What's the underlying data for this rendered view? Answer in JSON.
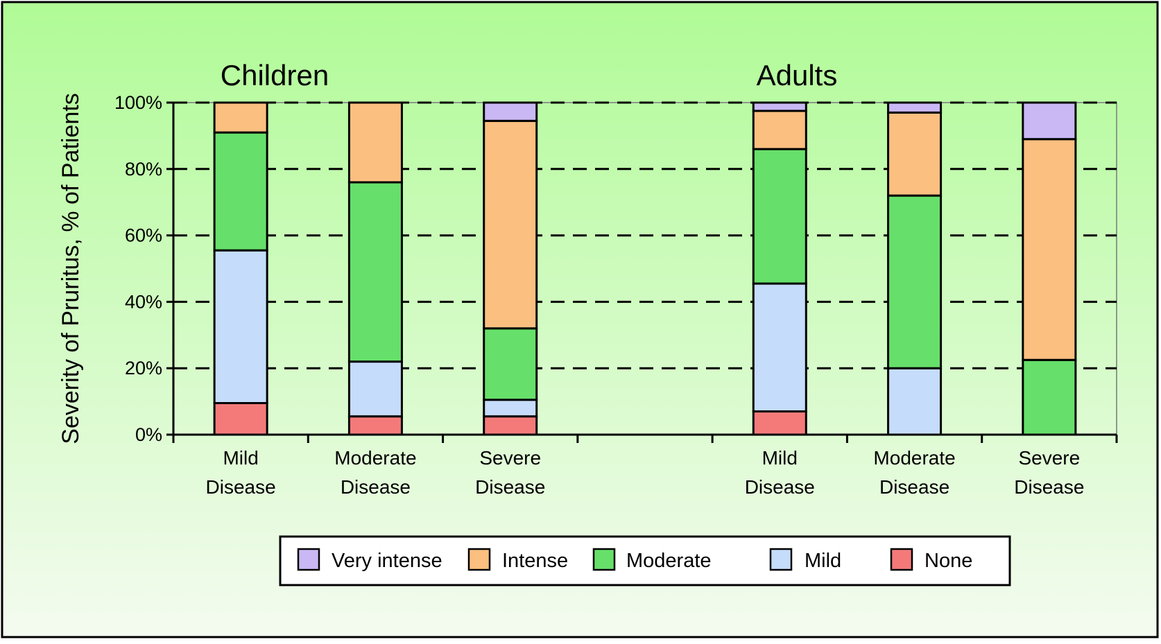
{
  "chart_data": {
    "type": "bar",
    "stacked": true,
    "ylabel": "Severity of Pruritus, % of Patients",
    "ylim": [
      0,
      100
    ],
    "yticks": [
      {
        "value": 0,
        "label": "0%"
      },
      {
        "value": 20,
        "label": "20%"
      },
      {
        "value": 40,
        "label": "40%"
      },
      {
        "value": 60,
        "label": "60%"
      },
      {
        "value": 80,
        "label": "80%"
      },
      {
        "value": 100,
        "label": "100%"
      }
    ],
    "gridlines": "dashed",
    "groups": [
      {
        "title": "Children",
        "categories": [
          {
            "line1": "Mild",
            "line2": "Disease"
          },
          {
            "line1": "Moderate",
            "line2": "Disease"
          },
          {
            "line1": "Severe",
            "line2": "Disease"
          }
        ]
      },
      {
        "title": "Adults",
        "categories": [
          {
            "line1": "Mild",
            "line2": "Disease"
          },
          {
            "line1": "Moderate",
            "line2": "Disease"
          },
          {
            "line1": "Severe",
            "line2": "Disease"
          }
        ]
      }
    ],
    "series": [
      {
        "name": "None",
        "color": "#f47a7a",
        "values": [
          9.5,
          5.5,
          5.5,
          7,
          0,
          0
        ]
      },
      {
        "name": "Mild",
        "color": "#c5dcfa",
        "values": [
          46,
          16.5,
          5,
          38.5,
          20,
          0
        ]
      },
      {
        "name": "Moderate",
        "color": "#66e06a",
        "values": [
          35.5,
          54,
          21.5,
          40.5,
          52,
          22.5
        ]
      },
      {
        "name": "Intense",
        "color": "#fbbf80",
        "values": [
          9,
          24,
          62.5,
          11.5,
          25,
          66.5
        ]
      },
      {
        "name": "Very intense",
        "color": "#c9b8f4",
        "values": [
          0,
          0,
          5.5,
          2.5,
          3,
          11
        ]
      }
    ],
    "legend": {
      "position": "bottom",
      "order": [
        "Very intense",
        "Intense",
        "Moderate",
        "Mild",
        "None"
      ]
    }
  },
  "colors": {
    "background_top": "#b0fb96",
    "background_bottom": "#f4fbf0",
    "plot_border": "#8a9a8a"
  }
}
